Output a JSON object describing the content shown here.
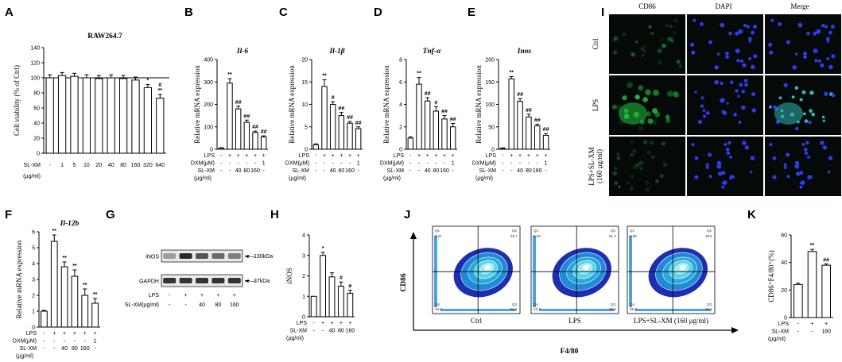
{
  "panel_labels": [
    "A",
    "B",
    "C",
    "D",
    "E",
    "F",
    "G",
    "H",
    "I",
    "J",
    "K"
  ],
  "chart_data": [
    {
      "id": "A",
      "type": "bar",
      "title": "RAW264.7",
      "ylabel": "Cell viability (% of Ctrl)",
      "ylim": [
        0,
        140
      ],
      "yticks": [
        0,
        20,
        40,
        60,
        80,
        100,
        120,
        140
      ],
      "ref_line": 100,
      "row_labels": [
        "SL-XM",
        "(μg/ml)"
      ],
      "categories": [
        "-",
        "1",
        "5",
        "10",
        "20",
        "40",
        "80",
        "160",
        "320",
        "640"
      ],
      "values": [
        100,
        103,
        102,
        100,
        99,
        100,
        99,
        97,
        87,
        73
      ],
      "errors": [
        4,
        4,
        4,
        4,
        4,
        4,
        4,
        4,
        4,
        5
      ],
      "sig": [
        "",
        "",
        "",
        "",
        "",
        "",
        "",
        "",
        "*",
        "#\n**"
      ]
    },
    {
      "id": "B",
      "type": "bar",
      "title": "Il-6",
      "ylabel": "Relative mRNA expression",
      "ylim": [
        0,
        400
      ],
      "yticks": [
        0,
        100,
        200,
        300,
        400
      ],
      "rows": [
        {
          "label": "LPS",
          "cells": [
            "-",
            "+",
            "+",
            "+",
            "+",
            "+"
          ]
        },
        {
          "label": "DXM(μM)",
          "cells": [
            "-",
            "-",
            "-",
            "-",
            "-",
            "1"
          ]
        },
        {
          "label": "SL-XM",
          "cells": [
            "-",
            "-",
            "40",
            "80",
            "160",
            "-"
          ]
        }
      ],
      "unit_label": "(μg/ml)",
      "values": [
        5,
        295,
        180,
        120,
        75,
        55
      ],
      "errors": [
        2,
        20,
        12,
        10,
        6,
        5
      ],
      "sig": [
        "",
        "**",
        "##",
        "##",
        "##",
        "##"
      ]
    },
    {
      "id": "C",
      "type": "bar",
      "title": "Il-1β",
      "ylabel": "Relative mRNA expression",
      "ylim": [
        0,
        20
      ],
      "yticks": [
        0,
        5,
        10,
        15,
        20
      ],
      "rows": [
        {
          "label": "LPS",
          "cells": [
            "-",
            "+",
            "+",
            "+",
            "+",
            "+"
          ]
        },
        {
          "label": "DXM(μM)",
          "cells": [
            "-",
            "-",
            "-",
            "-",
            "-",
            "1"
          ]
        },
        {
          "label": "SL-XM",
          "cells": [
            "-",
            "-",
            "40",
            "80",
            "160",
            "-"
          ]
        }
      ],
      "unit_label": "(μg/ml)",
      "values": [
        1,
        14,
        10,
        7.5,
        5.8,
        4.6
      ],
      "errors": [
        0.2,
        1.5,
        0.6,
        0.7,
        0.4,
        0.4
      ],
      "sig": [
        "",
        "**",
        "#",
        "##",
        "##",
        "##"
      ]
    },
    {
      "id": "D",
      "type": "bar",
      "title": "Tnf-α",
      "ylabel": "Relative mRNA expression",
      "ylim": [
        0,
        8
      ],
      "yticks": [
        0,
        2,
        4,
        6,
        8
      ],
      "rows": [
        {
          "label": "LPS",
          "cells": [
            "-",
            "+",
            "+",
            "+",
            "+",
            "+"
          ]
        },
        {
          "label": "DXM(μM)",
          "cells": [
            "-",
            "-",
            "-",
            "-",
            "-",
            "1"
          ]
        },
        {
          "label": "SL-XM",
          "cells": [
            "-",
            "-",
            "40",
            "80",
            "160",
            "-"
          ]
        }
      ],
      "unit_label": "(μg/ml)",
      "values": [
        1,
        5.8,
        4.3,
        3.4,
        2.7,
        2.0
      ],
      "errors": [
        0.1,
        0.6,
        0.3,
        0.4,
        0.3,
        0.3
      ],
      "sig": [
        "",
        "**",
        "##",
        "#",
        "##",
        "##"
      ]
    },
    {
      "id": "E",
      "type": "bar",
      "title": "Inos",
      "ylabel": "Relative mRNA expression",
      "ylim": [
        0,
        200
      ],
      "yticks": [
        0,
        50,
        100,
        150,
        200
      ],
      "rows": [
        {
          "label": "LPS",
          "cells": [
            "-",
            "+",
            "+",
            "+",
            "+",
            "+"
          ]
        },
        {
          "label": "DXM(μM)",
          "cells": [
            "-",
            "-",
            "-",
            "-",
            "-",
            "1"
          ]
        },
        {
          "label": "SL-XM",
          "cells": [
            "-",
            "-",
            "40",
            "80",
            "160",
            "-"
          ]
        }
      ],
      "unit_label": "(μg/ml)",
      "values": [
        2,
        157,
        107,
        72,
        52,
        31
      ],
      "errors": [
        1,
        5,
        6,
        6,
        4,
        4
      ],
      "sig": [
        "",
        "**",
        "##",
        "##",
        "##",
        "##"
      ]
    },
    {
      "id": "F",
      "type": "bar",
      "title": "Il-12b",
      "ylabel": "Relative mRNA expression",
      "ylim": [
        0,
        6
      ],
      "yticks": [
        0,
        1,
        2,
        3,
        4,
        5,
        6
      ],
      "rows": [
        {
          "label": "LPS",
          "cells": [
            "-",
            "+",
            "+",
            "+",
            "+",
            "+"
          ]
        },
        {
          "label": "DXM(μM)",
          "cells": [
            "-",
            "-",
            "-",
            "-",
            "-",
            "1"
          ]
        },
        {
          "label": "SL-XM",
          "cells": [
            "-",
            "-",
            "40",
            "80",
            "160",
            "-"
          ]
        }
      ],
      "unit_label": "(μg/ml)",
      "values": [
        1,
        5.4,
        3.8,
        3.2,
        2.0,
        1.5
      ],
      "errors": [
        0.05,
        0.4,
        0.3,
        0.4,
        0.4,
        0.3
      ],
      "sig": [
        "",
        "**",
        "**",
        "**",
        "**",
        "**"
      ]
    },
    {
      "id": "H",
      "type": "bar",
      "title": "",
      "ylabel": "iNOS",
      "ylim": [
        0,
        4
      ],
      "yticks": [
        0,
        1,
        2,
        3,
        4
      ],
      "rows": [
        {
          "label": "LPS",
          "cells": [
            "-",
            "+",
            "+",
            "+",
            "+"
          ]
        },
        {
          "label": "SL-XM",
          "cells": [
            "-",
            "-",
            "40",
            "80",
            "160"
          ]
        }
      ],
      "unit_label": "(μg/ml)",
      "values": [
        1,
        3.0,
        1.95,
        1.5,
        1.15
      ],
      "errors": [
        0,
        0.15,
        0.2,
        0.2,
        0.15
      ],
      "sig": [
        "",
        "*",
        "",
        "#",
        "#"
      ]
    },
    {
      "id": "K",
      "type": "bar",
      "title": "",
      "ylabel": "CD86⁺F4/80⁺(%)",
      "ylim": [
        0,
        60
      ],
      "yticks": [
        0,
        20,
        40,
        60
      ],
      "rows": [
        {
          "label": "LPS",
          "cells": [
            "-",
            "+",
            "+"
          ]
        },
        {
          "label": "SL-XM",
          "cells": [
            "-",
            "-",
            "160"
          ]
        }
      ],
      "unit_label": "(μg/ml)",
      "values": [
        24,
        48,
        38
      ],
      "errors": [
        1,
        1.5,
        1
      ],
      "sig": [
        "",
        "**",
        "##"
      ]
    }
  ],
  "western_blot": {
    "bands": [
      "iNOS",
      "GAPDH"
    ],
    "markers": [
      "130kDa",
      "37kDa"
    ],
    "rows": [
      {
        "label": "LPS",
        "cells": [
          "-",
          "+",
          "+",
          "+",
          "+"
        ]
      },
      {
        "label": "SL-XM(μg/ml)",
        "cells": [
          "-",
          "-",
          "40",
          "80",
          "160"
        ]
      }
    ]
  },
  "microscopy": {
    "columns": [
      "CD86",
      "DAPI",
      "Merge"
    ],
    "rows": [
      "Ctrl",
      "LPS",
      "LPS+SL-XM (160 μg/ml)"
    ]
  },
  "flow": {
    "ylabel": "CD86",
    "xlabel": "F4/80",
    "plots": [
      {
        "label": "Ctrl",
        "q1": "3.21",
        "q2": "25.7",
        "q3": "52.1",
        "q4": "18.9"
      },
      {
        "label": "LPS",
        "q1": "5.63",
        "q2": "51.2",
        "q3": "20.3",
        "q4": "22.7"
      },
      {
        "label": "LPS+SL-XM (160 μg/ml)",
        "q1": "5.65",
        "q2": "39.6",
        "q3": "26.9",
        "q4": "28.0"
      }
    ],
    "quad_names": [
      "Q1",
      "Q2",
      "Q3",
      "Q4"
    ]
  },
  "colors": {
    "axis": "#000000",
    "bar": "#ffffff",
    "micro_bg": "#050a08",
    "cd86": "#22c040",
    "dapi": "#2a3cf0",
    "flow_dark": "#1d2fb0",
    "flow_mid": "#1f8bd6",
    "flow_light": "#56d6e8",
    "flow_core": "#ffffff"
  }
}
